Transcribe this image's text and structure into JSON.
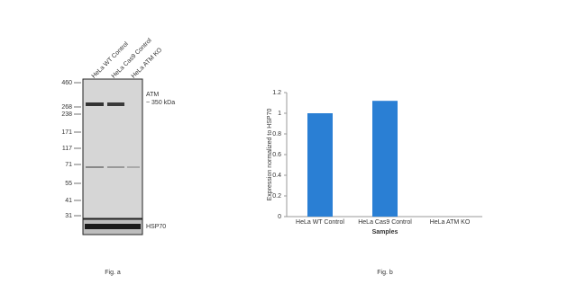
{
  "blot": {
    "lanes": [
      "HeLa WT Control",
      "HeLa Cas9 Control",
      "HeLa ATM KO"
    ],
    "markers": [
      460,
      268,
      238,
      171,
      117,
      71,
      55,
      41,
      31
    ],
    "target_label": "ATM",
    "target_size": "~ 350 kDa",
    "loading_label": "HSP70",
    "caption": "Fig. a"
  },
  "chart_data": {
    "type": "bar",
    "categories": [
      "HeLa WT Control",
      "HeLa Cas9 Control",
      "HeLa ATM KO"
    ],
    "values": [
      1,
      1.12,
      0
    ],
    "color": "#2a7fd4",
    "ylim": [
      0,
      1.2
    ],
    "yticks": [
      0,
      0.2,
      0.4,
      0.6,
      0.8,
      1,
      1.2
    ],
    "xlabel": "Samples",
    "ylabel": "Expression normalized to HSP70",
    "caption": "Fig. b"
  }
}
